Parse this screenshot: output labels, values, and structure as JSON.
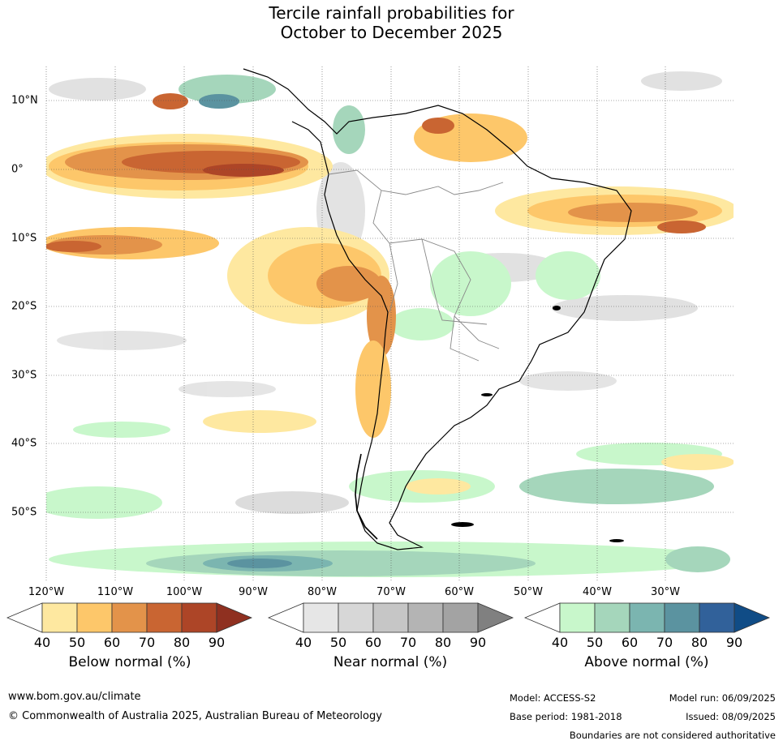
{
  "title_line1": "Tercile rainfall probabilities for",
  "title_line2": "October to December 2025",
  "longitudes": [
    "120°W",
    "110°W",
    "100°W",
    "90°W",
    "80°W",
    "70°W",
    "60°W",
    "50°W",
    "40°W",
    "30°W"
  ],
  "latitudes": [
    "10°N",
    "0°",
    "10°S",
    "20°S",
    "30°S",
    "40°S",
    "50°S"
  ],
  "colorbars": [
    {
      "title": "Below normal (%)",
      "ticks": [
        "40",
        "50",
        "60",
        "70",
        "80",
        "90"
      ],
      "colors": [
        "#ffffff",
        "#fee8a0",
        "#fdc76a",
        "#e3934a",
        "#c96532",
        "#ad4527",
        "#8f3020"
      ]
    },
    {
      "title": "Near normal (%)",
      "ticks": [
        "40",
        "50",
        "60",
        "70",
        "80",
        "90"
      ],
      "colors": [
        "#ffffff",
        "#e6e6e6",
        "#d7d7d7",
        "#c6c6c6",
        "#b4b4b4",
        "#a3a3a3",
        "#808080"
      ]
    },
    {
      "title": "Above normal (%)",
      "ticks": [
        "40",
        "50",
        "60",
        "70",
        "80",
        "90"
      ],
      "colors": [
        "#ffffff",
        "#c8f7cb",
        "#a5d6bb",
        "#7bb5b0",
        "#5b93a0",
        "#31619a",
        "#104c86"
      ]
    }
  ],
  "footer": {
    "url": "www.bom.gov.au/climate",
    "copyright": "© Commonwealth of Australia 2025, Australian Bureau of Meteorology",
    "model": "Model: ACCESS-S2",
    "base_period": "Base period: 1981-2018",
    "model_run": "Model run: 06/09/2025",
    "issued": "Issued: 08/09/2025",
    "disclaimer": "Boundaries are not considered authoritative"
  }
}
